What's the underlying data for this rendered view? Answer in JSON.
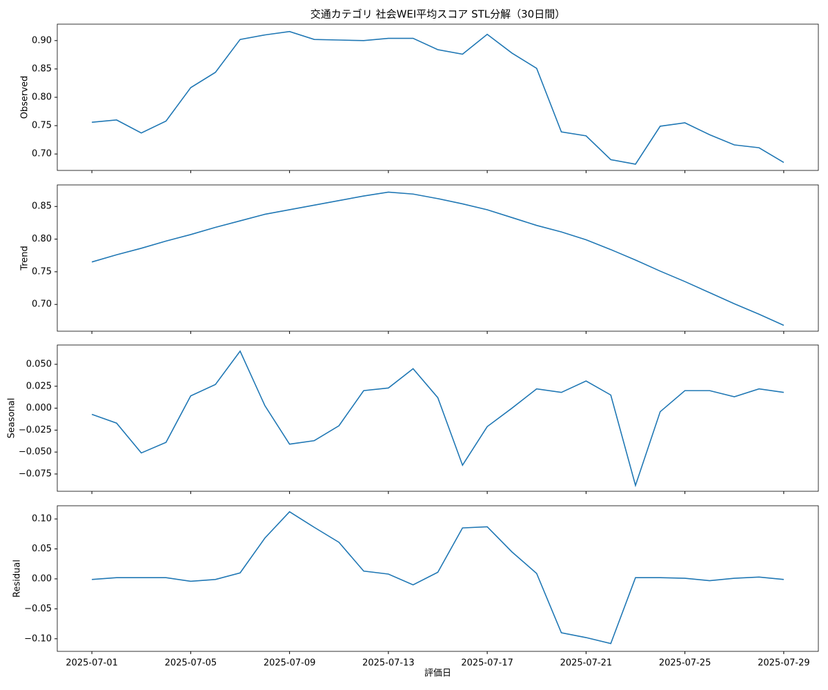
{
  "chart_data": [
    {
      "type": "line",
      "title": "交通カテゴリ 社会WEI平均スコア STL分解（30日間）",
      "ylabel": "Observed",
      "x": [
        "2025-07-01",
        "2025-07-02",
        "2025-07-03",
        "2025-07-04",
        "2025-07-05",
        "2025-07-06",
        "2025-07-07",
        "2025-07-08",
        "2025-07-09",
        "2025-07-10",
        "2025-07-11",
        "2025-07-12",
        "2025-07-13",
        "2025-07-14",
        "2025-07-15",
        "2025-07-16",
        "2025-07-17",
        "2025-07-18",
        "2025-07-19",
        "2025-07-20",
        "2025-07-21",
        "2025-07-22",
        "2025-07-23",
        "2025-07-24",
        "2025-07-25",
        "2025-07-26",
        "2025-07-27",
        "2025-07-28",
        "2025-07-29"
      ],
      "series": [
        {
          "name": "Observed",
          "color": "#1f77b4",
          "values": [
            0.756,
            0.76,
            0.737,
            0.758,
            0.817,
            0.844,
            0.902,
            0.91,
            0.916,
            0.902,
            0.901,
            0.9,
            0.904,
            0.904,
            0.884,
            0.876,
            0.911,
            0.878,
            0.851,
            0.739,
            0.732,
            0.69,
            0.682,
            0.749,
            0.755,
            0.734,
            0.716,
            0.711,
            0.685
          ]
        }
      ],
      "xlim": [
        "2025-06-29T14:24",
        "2025-07-30T09:36"
      ],
      "xticks": [
        "2025-07-01",
        "2025-07-05",
        "2025-07-09",
        "2025-07-13",
        "2025-07-17",
        "2025-07-21",
        "2025-07-25",
        "2025-07-29"
      ],
      "ylim": [
        0.671,
        0.929
      ],
      "yticks": [
        {
          "value": 0.7,
          "label": "0.70"
        },
        {
          "value": 0.75,
          "label": "0.75"
        },
        {
          "value": 0.8,
          "label": "0.80"
        },
        {
          "value": 0.85,
          "label": "0.85"
        },
        {
          "value": 0.9,
          "label": "0.90"
        }
      ]
    },
    {
      "type": "line",
      "ylabel": "Trend",
      "x": [
        "2025-07-01",
        "2025-07-02",
        "2025-07-03",
        "2025-07-04",
        "2025-07-05",
        "2025-07-06",
        "2025-07-07",
        "2025-07-08",
        "2025-07-09",
        "2025-07-10",
        "2025-07-11",
        "2025-07-12",
        "2025-07-13",
        "2025-07-14",
        "2025-07-15",
        "2025-07-16",
        "2025-07-17",
        "2025-07-18",
        "2025-07-19",
        "2025-07-20",
        "2025-07-21",
        "2025-07-22",
        "2025-07-23",
        "2025-07-24",
        "2025-07-25",
        "2025-07-26",
        "2025-07-27",
        "2025-07-28",
        "2025-07-29"
      ],
      "series": [
        {
          "name": "Trend",
          "color": "#1f77b4",
          "values": [
            0.765,
            0.776,
            0.786,
            0.797,
            0.807,
            0.818,
            0.828,
            0.838,
            0.845,
            0.852,
            0.859,
            0.866,
            0.872,
            0.869,
            0.862,
            0.854,
            0.845,
            0.833,
            0.821,
            0.811,
            0.799,
            0.784,
            0.768,
            0.751,
            0.735,
            0.718,
            0.701,
            0.685,
            0.668
          ]
        }
      ],
      "xlim": [
        "2025-06-29T14:24",
        "2025-07-30T09:36"
      ],
      "xticks": [
        "2025-07-01",
        "2025-07-05",
        "2025-07-09",
        "2025-07-13",
        "2025-07-17",
        "2025-07-21",
        "2025-07-25",
        "2025-07-29"
      ],
      "ylim": [
        0.659,
        0.883
      ],
      "yticks": [
        {
          "value": 0.7,
          "label": "0.70"
        },
        {
          "value": 0.75,
          "label": "0.75"
        },
        {
          "value": 0.8,
          "label": "0.80"
        },
        {
          "value": 0.85,
          "label": "0.85"
        }
      ]
    },
    {
      "type": "line",
      "ylabel": "Seasonal",
      "x": [
        "2025-07-01",
        "2025-07-02",
        "2025-07-03",
        "2025-07-04",
        "2025-07-05",
        "2025-07-06",
        "2025-07-07",
        "2025-07-08",
        "2025-07-09",
        "2025-07-10",
        "2025-07-11",
        "2025-07-12",
        "2025-07-13",
        "2025-07-14",
        "2025-07-15",
        "2025-07-16",
        "2025-07-17",
        "2025-07-18",
        "2025-07-19",
        "2025-07-20",
        "2025-07-21",
        "2025-07-22",
        "2025-07-23",
        "2025-07-24",
        "2025-07-25",
        "2025-07-26",
        "2025-07-27",
        "2025-07-28",
        "2025-07-29"
      ],
      "series": [
        {
          "name": "Seasonal",
          "color": "#1f77b4",
          "values": [
            -0.007,
            -0.017,
            -0.051,
            -0.039,
            0.014,
            0.027,
            0.065,
            0.003,
            -0.041,
            -0.037,
            -0.02,
            0.02,
            0.023,
            0.045,
            0.012,
            -0.065,
            -0.021,
            0.0,
            0.022,
            0.018,
            0.031,
            0.015,
            -0.088,
            -0.004,
            0.02,
            0.02,
            0.013,
            0.022,
            0.018
          ]
        }
      ],
      "xlim": [
        "2025-06-29T14:24",
        "2025-07-30T09:36"
      ],
      "xticks": [
        "2025-07-01",
        "2025-07-05",
        "2025-07-09",
        "2025-07-13",
        "2025-07-17",
        "2025-07-21",
        "2025-07-25",
        "2025-07-29"
      ],
      "ylim": [
        -0.0947,
        0.072
      ],
      "yticks": [
        {
          "value": -0.075,
          "label": "−0.075"
        },
        {
          "value": -0.05,
          "label": "−0.050"
        },
        {
          "value": -0.025,
          "label": "−0.025"
        },
        {
          "value": 0,
          "label": "0.000"
        },
        {
          "value": 0.025,
          "label": "0.025"
        },
        {
          "value": 0.05,
          "label": "0.050"
        }
      ]
    },
    {
      "type": "line",
      "ylabel": "Residual",
      "xlabel": "評価日",
      "x": [
        "2025-07-01",
        "2025-07-02",
        "2025-07-03",
        "2025-07-04",
        "2025-07-05",
        "2025-07-06",
        "2025-07-07",
        "2025-07-08",
        "2025-07-09",
        "2025-07-10",
        "2025-07-11",
        "2025-07-12",
        "2025-07-13",
        "2025-07-14",
        "2025-07-15",
        "2025-07-16",
        "2025-07-17",
        "2025-07-18",
        "2025-07-19",
        "2025-07-20",
        "2025-07-21",
        "2025-07-22",
        "2025-07-23",
        "2025-07-24",
        "2025-07-25",
        "2025-07-26",
        "2025-07-27",
        "2025-07-28",
        "2025-07-29"
      ],
      "series": [
        {
          "name": "Residual",
          "color": "#1f77b4",
          "values": [
            -0.001,
            0.002,
            0.002,
            0.002,
            -0.004,
            -0.001,
            0.01,
            0.068,
            0.112,
            0.086,
            0.061,
            0.013,
            0.008,
            -0.01,
            0.011,
            0.085,
            0.087,
            0.045,
            0.009,
            -0.09,
            -0.098,
            -0.108,
            0.002,
            0.002,
            0.001,
            -0.003,
            0.001,
            0.003,
            -0.001
          ]
        }
      ],
      "xlim": [
        "2025-06-29T14:24",
        "2025-07-30T09:36"
      ],
      "xticks": [
        "2025-07-01",
        "2025-07-05",
        "2025-07-09",
        "2025-07-13",
        "2025-07-17",
        "2025-07-21",
        "2025-07-25",
        "2025-07-29"
      ],
      "ylim": [
        -0.121,
        0.122
      ],
      "yticks": [
        {
          "value": -0.1,
          "label": "−0.10"
        },
        {
          "value": -0.05,
          "label": "−0.05"
        },
        {
          "value": 0,
          "label": "0.00"
        },
        {
          "value": 0.05,
          "label": "0.05"
        },
        {
          "value": 0.1,
          "label": "0.10"
        }
      ]
    }
  ]
}
